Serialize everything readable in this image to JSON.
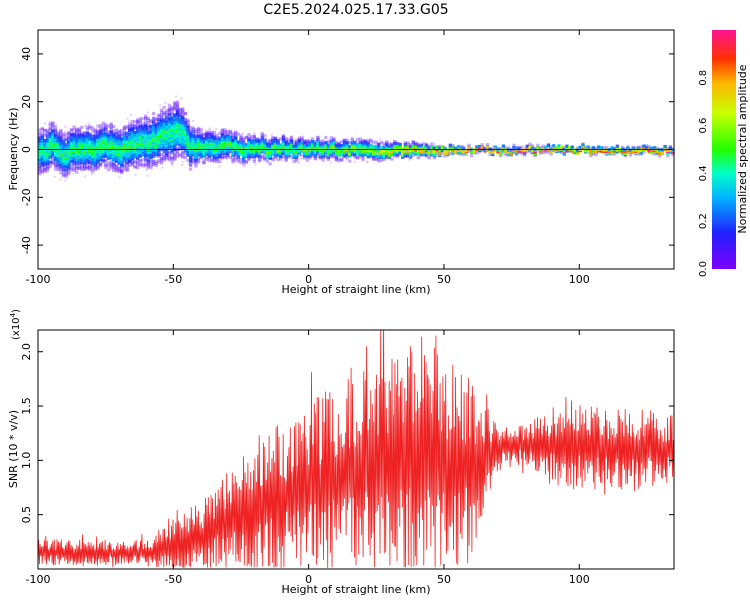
{
  "chart_data": [
    {
      "type": "heatmap",
      "title": "C2E5.2024.025.17.33.G05",
      "xlabel": "Height of straight line (km)",
      "ylabel": "Frequency (Hz)",
      "xlim": [
        -100,
        135
      ],
      "ylim": [
        -50,
        50
      ],
      "x_ticks": [
        -100,
        -50,
        0,
        50,
        100
      ],
      "x_tick_labels": [
        "-100",
        "-50",
        "0",
        "50",
        "100"
      ],
      "y_ticks": [
        -40,
        -20,
        0,
        20,
        40
      ],
      "y_tick_labels": [
        "-40",
        "-20",
        "0",
        "20",
        "40"
      ],
      "colorbar": {
        "label": "Normalized spectral amplitude",
        "range": [
          0,
          1
        ],
        "ticks": [
          0,
          0.2,
          0.4,
          0.6,
          0.8
        ],
        "tick_labels": [
          "0.0",
          "0.2",
          "0.4",
          "0.6",
          "0.8"
        ],
        "colormap": "rainbow"
      },
      "ridge_center_freq": [
        [
          -100,
          -1
        ],
        [
          -95,
          2
        ],
        [
          -90,
          -2
        ],
        [
          -85,
          1
        ],
        [
          -80,
          0
        ],
        [
          -75,
          2
        ],
        [
          -70,
          0
        ],
        [
          -65,
          2
        ],
        [
          -60,
          3
        ],
        [
          -55,
          5
        ],
        [
          -50,
          8
        ],
        [
          -47,
          8
        ],
        [
          -45,
          2
        ],
        [
          -40,
          1
        ],
        [
          -35,
          1
        ],
        [
          -30,
          2
        ],
        [
          -25,
          0
        ],
        [
          -20,
          1
        ],
        [
          -15,
          0
        ],
        [
          -10,
          1
        ],
        [
          -5,
          0
        ],
        [
          0,
          1
        ],
        [
          10,
          0
        ],
        [
          20,
          0
        ],
        [
          30,
          0
        ],
        [
          40,
          0
        ],
        [
          50,
          0
        ],
        [
          60,
          0
        ],
        [
          135,
          0
        ]
      ],
      "ridge_spread_hz": [
        [
          -100,
          7
        ],
        [
          -70,
          7
        ],
        [
          -50,
          9
        ],
        [
          -40,
          5
        ],
        [
          -20,
          4
        ],
        [
          0,
          3
        ],
        [
          20,
          3
        ],
        [
          40,
          2
        ],
        [
          60,
          1
        ],
        [
          135,
          1
        ]
      ],
      "ridge_peak_amplitude": [
        [
          -100,
          0.45
        ],
        [
          -70,
          0.48
        ],
        [
          -50,
          0.45
        ],
        [
          -20,
          0.5
        ],
        [
          0,
          0.55
        ],
        [
          20,
          0.6
        ],
        [
          40,
          0.8
        ],
        [
          60,
          0.95
        ],
        [
          135,
          0.95
        ]
      ],
      "grid": false
    },
    {
      "type": "line",
      "title": "",
      "xlabel": "Height of straight line (km)",
      "ylabel": "SNR (10 * v/v)",
      "y_scale_label": "(x10",
      "y_scale_exponent": "4",
      "y_scale_suffix": ")",
      "xlim": [
        -100,
        135
      ],
      "ylim": [
        0,
        2.2
      ],
      "x_ticks": [
        -100,
        -50,
        0,
        50,
        100
      ],
      "x_tick_labels": [
        "-100",
        "-50",
        "0",
        "50",
        "100"
      ],
      "y_ticks": [
        0.5,
        1.0,
        1.5,
        2.0
      ],
      "y_tick_labels": [
        "0.5",
        "1.0",
        "1.5",
        "2.0"
      ],
      "series": [
        {
          "color": "#ee2222",
          "baseline": [
            [
              -100,
              0.15
            ],
            [
              -60,
              0.15
            ],
            [
              -50,
              0.2
            ],
            [
              -40,
              0.3
            ],
            [
              -30,
              0.45
            ],
            [
              -20,
              0.55
            ],
            [
              -10,
              0.65
            ],
            [
              0,
              0.75
            ],
            [
              10,
              0.85
            ],
            [
              20,
              0.95
            ],
            [
              30,
              1.0
            ],
            [
              40,
              1.0
            ],
            [
              50,
              1.0
            ],
            [
              60,
              0.95
            ],
            [
              65,
              1.0
            ],
            [
              70,
              1.1
            ],
            [
              80,
              1.15
            ],
            [
              90,
              1.15
            ],
            [
              100,
              1.15
            ],
            [
              110,
              1.1
            ],
            [
              120,
              1.1
            ],
            [
              135,
              1.1
            ]
          ],
          "amplitude": [
            [
              -100,
              0.1
            ],
            [
              -60,
              0.1
            ],
            [
              -50,
              0.2
            ],
            [
              -40,
              0.25
            ],
            [
              -30,
              0.35
            ],
            [
              -20,
              0.5
            ],
            [
              -10,
              0.55
            ],
            [
              0,
              0.6
            ],
            [
              10,
              0.7
            ],
            [
              20,
              0.75
            ],
            [
              30,
              0.85
            ],
            [
              40,
              0.9
            ],
            [
              50,
              0.8
            ],
            [
              60,
              0.7
            ],
            [
              70,
              0.15
            ],
            [
              80,
              0.15
            ],
            [
              90,
              0.3
            ],
            [
              100,
              0.35
            ],
            [
              110,
              0.3
            ],
            [
              120,
              0.3
            ],
            [
              135,
              0.25
            ]
          ]
        }
      ],
      "grid": false
    }
  ]
}
